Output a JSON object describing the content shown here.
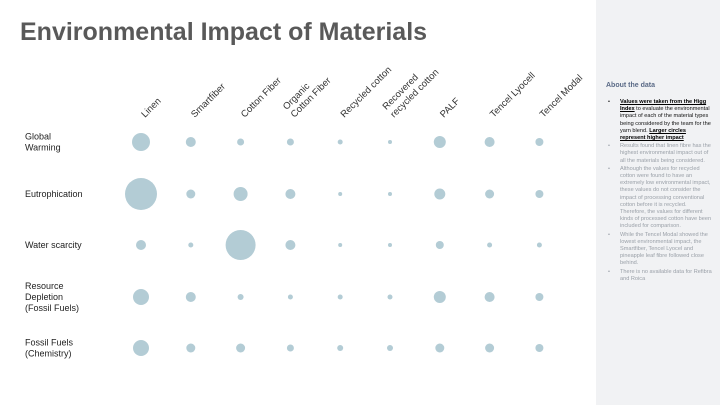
{
  "title": "Environmental Impact of Materials",
  "chart_data": {
    "type": "scatter",
    "subtype": "bubble-matrix",
    "categories": [
      "Linen",
      "Smartfiber",
      "Cotton Fiber",
      "Organic Cotton Fiber",
      "Recycled cotton",
      "Recovered recycled cotton",
      "PALF",
      "Tencel Lyocell",
      "Tencel Modal"
    ],
    "column_labels": [
      [
        "Linen"
      ],
      [
        "Smartfiber"
      ],
      [
        "Cotton Fiber"
      ],
      [
        "Organic",
        "Cotton Fiber"
      ],
      [
        "Recycled cotton"
      ],
      [
        "Recovered",
        "recycled cotton"
      ],
      [
        "PALF"
      ],
      [
        "Tencel Lyocell"
      ],
      [
        "Tencel Modal"
      ]
    ],
    "rows": [
      {
        "name": "Global Warming",
        "lines": [
          "Global",
          "Warming"
        ],
        "values": [
          9,
          5,
          3.5,
          3.5,
          2.5,
          2,
          6,
          5,
          4
        ]
      },
      {
        "name": "Eutrophication",
        "lines": [
          "Eutrophication"
        ],
        "values": [
          16,
          4.5,
          7,
          5,
          2,
          2,
          5.5,
          4.5,
          4
        ]
      },
      {
        "name": "Water scarcity",
        "lines": [
          "Water scarcity"
        ],
        "values": [
          5,
          2.5,
          15,
          5,
          2,
          2,
          4,
          2.5,
          2.5
        ]
      },
      {
        "name": "Resource Depletion (Fossil Fuels)",
        "lines": [
          "Resource",
          "Depletion",
          "(Fossil Fuels)"
        ],
        "values": [
          8,
          5,
          3,
          2.5,
          2.5,
          2.5,
          6,
          5,
          4
        ]
      },
      {
        "name": "Fossil Fuels (Chemistry)",
        "lines": [
          "Fossil Fuels",
          "(Chemistry)"
        ],
        "values": [
          8,
          4.5,
          4.5,
          3.5,
          3,
          3,
          4.5,
          4.5,
          4
        ]
      }
    ],
    "bubble_color": "#b3ccd5",
    "xlabel": "",
    "ylabel": "",
    "legend": "none",
    "grid": false
  },
  "sidebar": {
    "title": "About the data",
    "bullets": [
      {
        "bold1": "Values were taken from the Higg Index",
        "text1": " to evaluate the environmental impact of each of the material types being considered by the team for the yarn blend.  ",
        "bold2": "Larger circles represent higher impact"
      },
      {
        "text": "Results found that linen fibre has the highest environmental impact out of all the materials being considered."
      },
      {
        "text": "Although the values for recycled cotton were found to have an extremely low environmental impact, these values do not consider the impact of processing conventional cotton before it is recycled. Therefore, the values for different kinds of processed cotton have been included for comparison."
      },
      {
        "text": "While the Tencel Modal showed the lowest environmental impact, the Smartfiber, Tencel Lyocel and pineapple leaf fibre followed close behind."
      },
      {
        "text": "There is no available data for Refibra and Roica"
      }
    ]
  }
}
